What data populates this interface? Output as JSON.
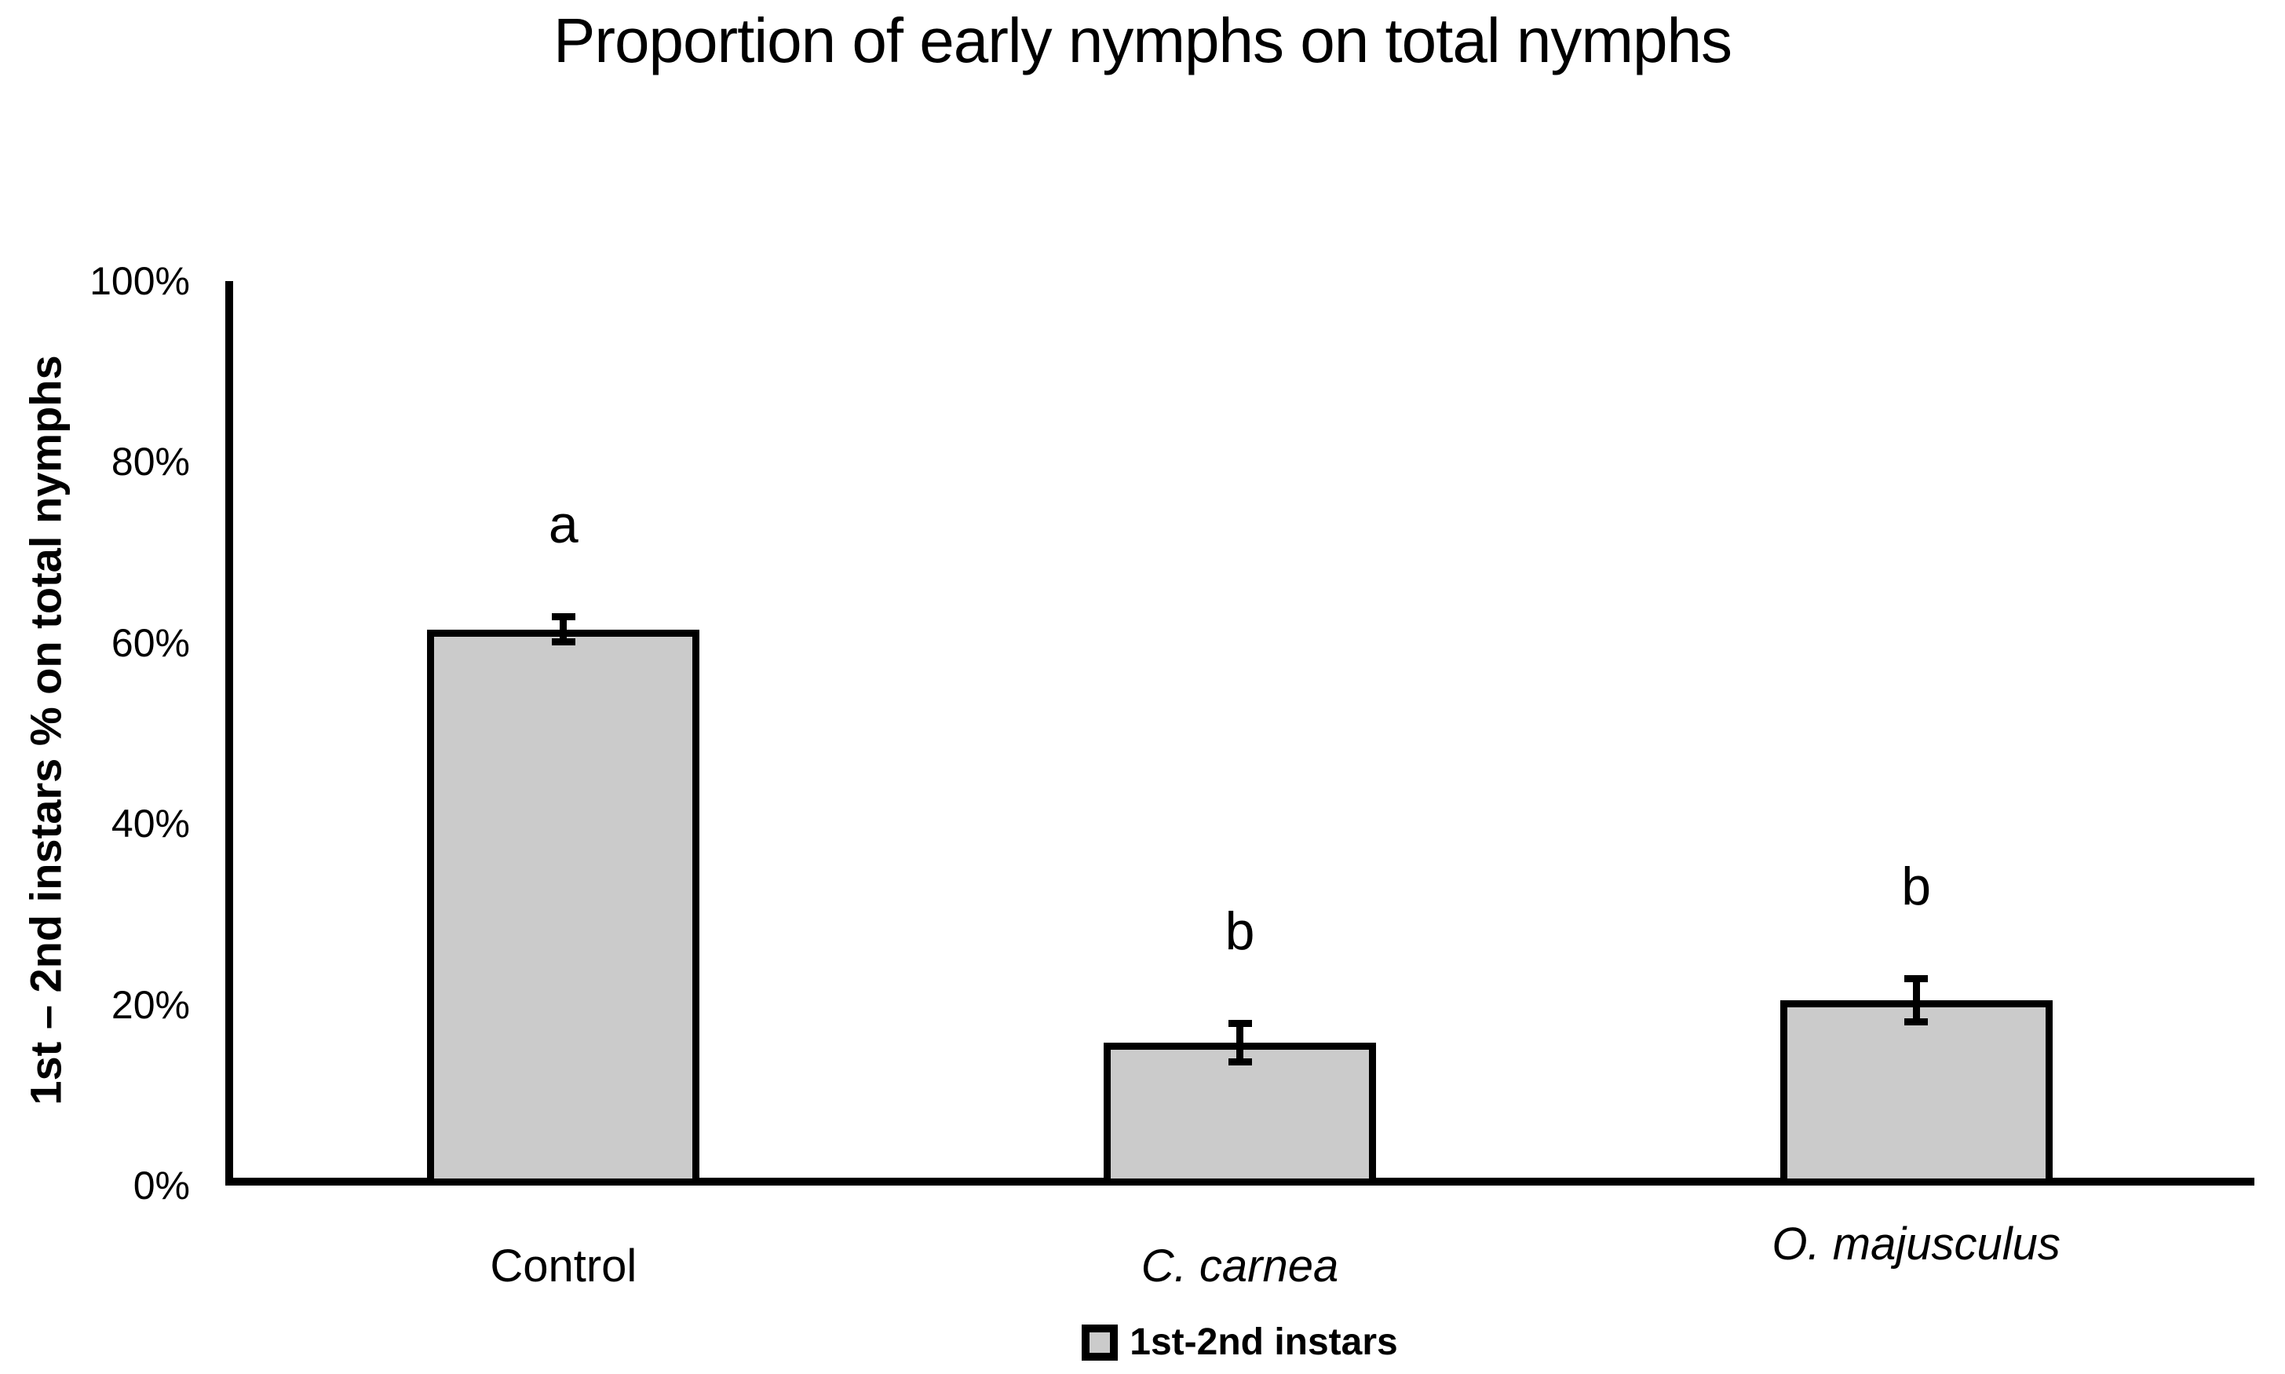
{
  "chart_data": {
    "type": "bar",
    "title": "Proportion of early nymphs on total nymphs",
    "ylabel": "1st – 2nd instars % on total nymphs",
    "xlabel": "",
    "categories": [
      "Control",
      "C. carnea",
      "O. majusculus"
    ],
    "categories_italic": [
      false,
      true,
      true
    ],
    "values": [
      61.5,
      15.8,
      20.5
    ],
    "errors": [
      1.8,
      2.5,
      2.8
    ],
    "significance_letters": [
      "a",
      "b",
      "b"
    ],
    "yticks": [
      "0%",
      "20%",
      "40%",
      "60%",
      "80%",
      "100%"
    ],
    "ytick_values": [
      0,
      20,
      40,
      60,
      80,
      100
    ],
    "ylim": [
      0,
      100
    ],
    "grid": false,
    "legend_position": "bottom",
    "legend": [
      "1st-2nd instars"
    ],
    "colors": {
      "bar_fill": "#CBCBCB",
      "bar_border": "#000000",
      "axis": "#000000",
      "text": "#000000",
      "background": "#FFFFFF"
    }
  }
}
